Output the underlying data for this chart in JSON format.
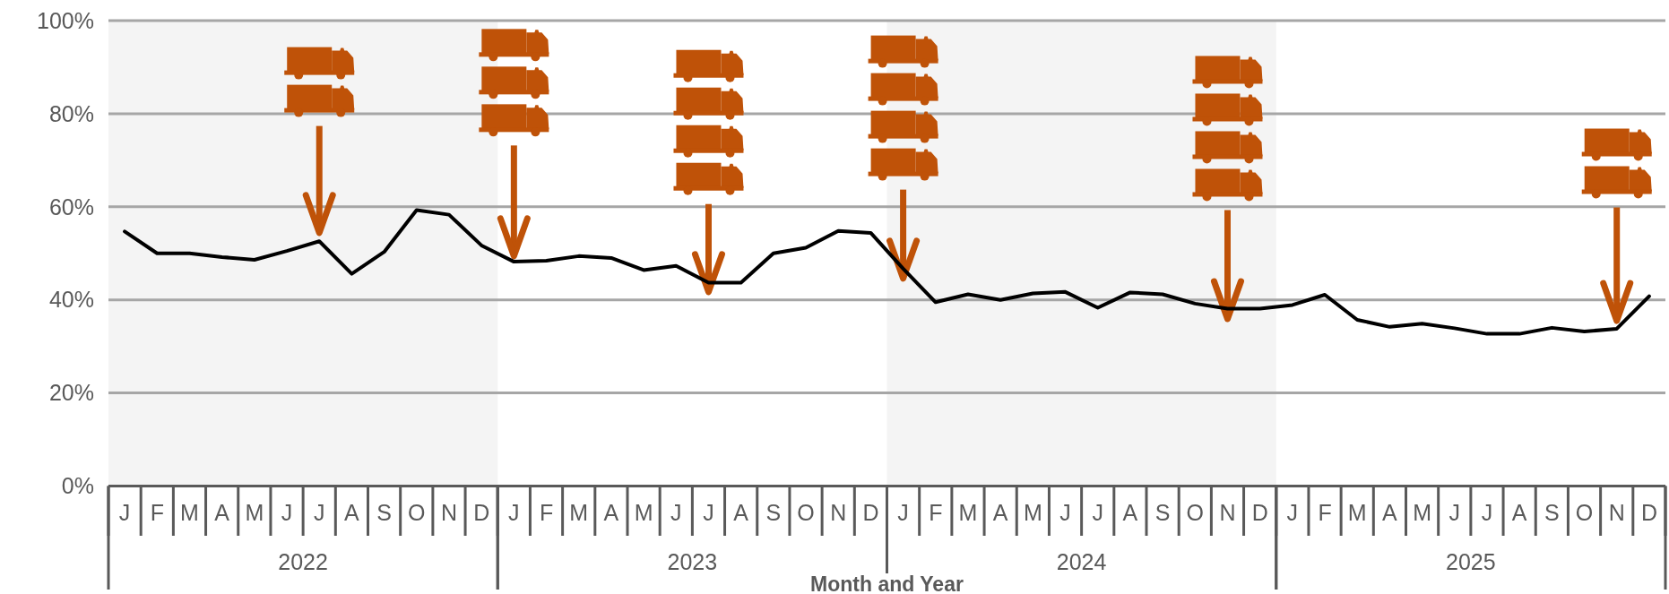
{
  "chart_data": {
    "type": "line",
    "xlabel": "Month and Year",
    "categories": [
      "J",
      "F",
      "M",
      "A",
      "M",
      "J",
      "J",
      "A",
      "S",
      "O",
      "N",
      "D",
      "J",
      "F",
      "M",
      "A",
      "M",
      "J",
      "J",
      "A",
      "S",
      "O",
      "N",
      "D",
      "J",
      "F",
      "M",
      "A",
      "M",
      "J",
      "J",
      "A",
      "S",
      "O",
      "N",
      "D",
      "J",
      "F",
      "M",
      "A",
      "M",
      "J",
      "J",
      "A",
      "S",
      "O",
      "N",
      "D"
    ],
    "series": [
      {
        "color": "#000000",
        "values": [
          54.7,
          50.0,
          50.0,
          49.2,
          48.6,
          50.5,
          52.6,
          45.6,
          50.3,
          59.3,
          58.3,
          51.7,
          48.2,
          48.4,
          49.4,
          49.0,
          46.4,
          47.3,
          43.7,
          43.7,
          50.0,
          51.2,
          54.8,
          54.4,
          46.7,
          39.5,
          41.2,
          40.0,
          41.4,
          41.7,
          38.3,
          41.6,
          41.2,
          39.2,
          38.1,
          38.1,
          38.9,
          41.1,
          35.7,
          34.2,
          34.9,
          33.9,
          32.7,
          32.7,
          34.0,
          33.2,
          33.8,
          40.8
        ]
      }
    ],
    "ylim": [
      0,
      100
    ],
    "yticks": [
      {
        "value": 0,
        "label": "0%"
      },
      {
        "value": 20,
        "label": "20%"
      },
      {
        "value": 40,
        "label": "40%"
      },
      {
        "value": 60,
        "label": "60%"
      },
      {
        "value": 80,
        "label": "80%"
      },
      {
        "value": 100,
        "label": "100%"
      }
    ],
    "grid": "y",
    "marker": "none",
    "line_style": "solid",
    "annotations": [
      "2022",
      "2023",
      "2024",
      "2025"
    ]
  }
}
